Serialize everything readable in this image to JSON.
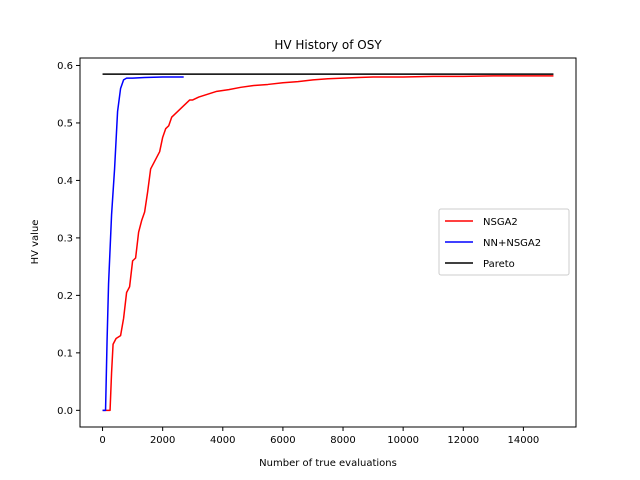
{
  "chart_data": {
    "type": "line",
    "title": "HV History of OSY",
    "xlabel": "Number of true evaluations",
    "ylabel": "HV value",
    "xlim": [
      -750,
      15750
    ],
    "ylim": [
      -0.029,
      0.613
    ],
    "xticks": [
      0,
      2000,
      4000,
      6000,
      8000,
      10000,
      12000,
      14000
    ],
    "xtick_labels": [
      "0",
      "2000",
      "4000",
      "6000",
      "8000",
      "10000",
      "12000",
      "14000"
    ],
    "yticks": [
      0.0,
      0.1,
      0.2,
      0.3,
      0.4,
      0.5,
      0.6
    ],
    "ytick_labels": [
      "0.0",
      "0.1",
      "0.2",
      "0.3",
      "0.4",
      "0.5",
      "0.6"
    ],
    "grid": false,
    "legend_position": "center-right",
    "series": [
      {
        "name": "NSGA2",
        "color": "#ff0000",
        "x": [
          0,
          150,
          250,
          300,
          350,
          450,
          600,
          700,
          800,
          900,
          1000,
          1100,
          1200,
          1300,
          1400,
          1500,
          1600,
          1700,
          1800,
          1900,
          2000,
          2100,
          2200,
          2300,
          2400,
          2500,
          2600,
          2700,
          2800,
          2900,
          3000,
          3200,
          3500,
          3800,
          4200,
          4600,
          5000,
          5500,
          6000,
          6500,
          7000,
          7500,
          8000,
          8500,
          9000,
          10000,
          11000,
          12000,
          13000,
          14000,
          15000
        ],
        "y": [
          0,
          0,
          0,
          0.065,
          0.115,
          0.125,
          0.13,
          0.16,
          0.205,
          0.215,
          0.26,
          0.265,
          0.31,
          0.33,
          0.345,
          0.38,
          0.42,
          0.43,
          0.44,
          0.45,
          0.475,
          0.49,
          0.495,
          0.51,
          0.515,
          0.52,
          0.525,
          0.53,
          0.535,
          0.54,
          0.54,
          0.545,
          0.55,
          0.555,
          0.558,
          0.562,
          0.565,
          0.567,
          0.57,
          0.572,
          0.575,
          0.577,
          0.578,
          0.579,
          0.58,
          0.58,
          0.581,
          0.581,
          0.582,
          0.582,
          0.582
        ]
      },
      {
        "name": "NN+NSGA2",
        "color": "#0000ff",
        "x": [
          0,
          100,
          150,
          200,
          300,
          400,
          500,
          600,
          700,
          800,
          1000,
          1400,
          2000,
          2700
        ],
        "y": [
          0,
          0,
          0.12,
          0.22,
          0.34,
          0.42,
          0.52,
          0.56,
          0.575,
          0.578,
          0.578,
          0.579,
          0.58,
          0.58
        ]
      },
      {
        "name": "Pareto",
        "color": "#000000",
        "x": [
          0,
          15000
        ],
        "y": [
          0.585,
          0.585
        ]
      }
    ]
  }
}
